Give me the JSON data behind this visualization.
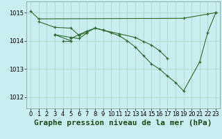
{
  "title": "Graphe pression niveau de la mer (hPa)",
  "background_color": "#c8eef0",
  "plot_bg_color": "#c8eef0",
  "grid_color": "#b0d8cc",
  "line_color": "#2d6a2d",
  "marker_color": "#2d6a2d",
  "xlim": [
    -0.5,
    23.5
  ],
  "ylim": [
    1011.6,
    1015.4
  ],
  "yticks": [
    1012,
    1013,
    1014,
    1015
  ],
  "xticks": [
    0,
    1,
    2,
    3,
    4,
    5,
    6,
    7,
    8,
    9,
    10,
    11,
    12,
    13,
    14,
    15,
    16,
    17,
    18,
    19,
    20,
    21,
    22,
    23
  ],
  "series": [
    {
      "x": [
        0,
        1,
        19,
        22,
        23
      ],
      "y": [
        1015.05,
        1014.78,
        1014.8,
        1014.95,
        1015.0
      ]
    },
    {
      "x": [
        1,
        3,
        5,
        6,
        7,
        8,
        9,
        11,
        13,
        14,
        15,
        16,
        17
      ],
      "y": [
        1014.68,
        1014.48,
        1014.45,
        1014.2,
        1014.3,
        1014.45,
        1014.38,
        1014.25,
        1014.12,
        1013.98,
        1013.85,
        1013.65,
        1013.38
      ]
    },
    {
      "x": [
        3,
        5,
        6,
        7
      ],
      "y": [
        1014.22,
        1014.12,
        1014.08,
        1014.28
      ]
    },
    {
      "x": [
        3,
        5
      ],
      "y": [
        1014.22,
        1014.0
      ]
    },
    {
      "x": [
        4,
        5
      ],
      "y": [
        1014.0,
        1014.0
      ]
    },
    {
      "x": [
        5,
        6,
        7,
        8,
        9,
        10,
        11,
        12,
        13,
        14,
        15,
        16,
        17,
        18,
        19,
        21,
        22,
        23
      ],
      "y": [
        1014.08,
        1014.22,
        1014.35,
        1014.45,
        1014.38,
        1014.28,
        1014.18,
        1014.0,
        1013.78,
        1013.48,
        1013.18,
        1013.0,
        1012.75,
        1012.52,
        1012.22,
        1013.25,
        1014.3,
        1015.0
      ]
    }
  ],
  "title_fontsize": 8,
  "tick_fontsize": 6,
  "ylabel_fontsize": 7
}
